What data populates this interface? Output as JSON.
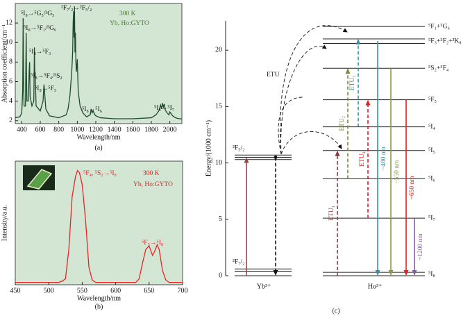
{
  "chart_data": [
    {
      "type": "line",
      "xlabel": "Wavelength/nm",
      "ylabel": "Absorption coefficient/cm⁻¹",
      "caption": "(a)",
      "xlim": [
        330,
        2130
      ],
      "ylim": [
        1.7,
        14
      ],
      "xticks": [
        400,
        600,
        800,
        1000,
        1200,
        1400,
        1600,
        1800,
        2000
      ],
      "yticks": [
        2,
        4,
        6,
        8,
        10,
        12
      ],
      "background": "#d3e6d3",
      "series": [
        {
          "color": "#1f4a2c",
          "x": [
            330,
            380,
            400,
            410,
            415,
            420,
            425,
            440,
            448,
            452,
            456,
            470,
            480,
            485,
            490,
            510,
            530,
            537,
            541,
            545,
            555,
            600,
            630,
            640,
            645,
            650,
            660,
            700,
            800,
            880,
            900,
            920,
            940,
            950,
            955,
            960,
            965,
            970,
            975,
            980,
            985,
            990,
            1000,
            1010,
            1030,
            1060,
            1100,
            1140,
            1150,
            1160,
            1170,
            1190,
            1200,
            1250,
            1400,
            1600,
            1800,
            1850,
            1880,
            1900,
            1910,
            1920,
            1930,
            1940,
            1950,
            1970,
            1990,
            2000,
            2030,
            2060,
            2100,
            2130
          ],
          "values": [
            2.3,
            2.4,
            2.8,
            5,
            12.5,
            6,
            3.5,
            3.5,
            11,
            6,
            4,
            4,
            7,
            8,
            4.5,
            3.5,
            4,
            9.5,
            6.5,
            7,
            3.5,
            3,
            4,
            5.7,
            5.2,
            4.5,
            3.2,
            2.5,
            2.3,
            2.6,
            3.2,
            4.5,
            7,
            9,
            12,
            13.2,
            10.5,
            13.7,
            9,
            11,
            8,
            7,
            8.3,
            5,
            3.5,
            2.8,
            2.4,
            2.6,
            3.2,
            2.8,
            3,
            2.6,
            2.5,
            2.3,
            2.2,
            2.2,
            2.3,
            2.6,
            3,
            3.6,
            3.2,
            3.8,
            3.4,
            3.7,
            3.1,
            2.8,
            2.6,
            2.9,
            2.5,
            2.3,
            2.2,
            2.2
          ]
        }
      ],
      "annotations": [
        "⁵I₈→⁵G₅/³G₅",
        "⁵I₈→⁵F₁/⁵G₆",
        "⁵I₈→⁵F₃",
        "⁵I₈→⁵F₄/⁵S₂",
        "⁵I₈→⁵F₅",
        "²F₇/₂→²F₅/₂",
        "⁵I₈→⁵I₆",
        "⁵I₈→⁵I₇",
        "300 K",
        "Yb, Ho:GYTO"
      ]
    },
    {
      "type": "line",
      "xlabel": "Wavelength/nm",
      "ylabel": "Intensity/a.u.",
      "caption": "(b)",
      "xlim": [
        450,
        700
      ],
      "ylim": [
        0,
        1.05
      ],
      "xticks": [
        450,
        500,
        550,
        600,
        650,
        700
      ],
      "background": "#d3e6d3",
      "series": [
        {
          "color": "#ee2222",
          "x": [
            450,
            480,
            515,
            520,
            525,
            530,
            535,
            540,
            543,
            546,
            550,
            555,
            560,
            565,
            570,
            630,
            635,
            640,
            645,
            650,
            655,
            658,
            662,
            665,
            670,
            675,
            680,
            700
          ],
          "values": [
            0.02,
            0.02,
            0.02,
            0.03,
            0.05,
            0.3,
            0.75,
            0.92,
            0.97,
            0.95,
            0.85,
            0.55,
            0.15,
            0.04,
            0.02,
            0.02,
            0.05,
            0.18,
            0.3,
            0.33,
            0.25,
            0.28,
            0.34,
            0.3,
            0.12,
            0.04,
            0.02,
            0.02
          ]
        }
      ],
      "annotations": [
        "⁵F₄, ⁵S₂→⁵I₈",
        "⁵F₅→⁵I₈",
        "300 K",
        "Yb, Ho:GYTO"
      ]
    },
    {
      "type": "energy-level",
      "ylabel": "Energy/(1000 cm⁻¹)",
      "caption": "(c)",
      "ylim": [
        0,
        22.6
      ],
      "yticks": [
        0,
        5,
        10,
        15,
        20
      ],
      "ions": [
        "Yb³⁺",
        "Ho³⁺"
      ],
      "annotation": "ETU",
      "yb_levels": [
        {
          "label": "²F₅/₂",
          "energies": [
            10.3,
            10.5,
            10.7
          ]
        },
        {
          "label": "²F₇/₂",
          "energies": [
            0,
            0.4,
            0.6
          ]
        }
      ],
      "ho_levels": [
        {
          "label": "⁵F₁+⁵G₆",
          "energies": [
            22.1
          ]
        },
        {
          "label": "⁵F₃+⁵F₂+³K₈",
          "energies": [
            20.6,
            21.0
          ]
        },
        {
          "label": "⁵S₂+⁵F₄",
          "energies": [
            18.4
          ]
        },
        {
          "label": "⁵F₅",
          "energies": [
            15.6
          ]
        },
        {
          "label": "⁵I₄",
          "energies": [
            13.2
          ]
        },
        {
          "label": "⁵I₅",
          "energies": [
            11.1
          ]
        },
        {
          "label": "⁵I₆",
          "energies": [
            8.6
          ]
        },
        {
          "label": "⁵I₇",
          "energies": [
            5.1
          ]
        },
        {
          "label": "⁵I₈",
          "energies": [
            0,
            0.3
          ]
        }
      ],
      "transitions": [
        {
          "from": 0,
          "to": 10.5,
          "color": "#8b4a4a",
          "style": "solid"
        },
        {
          "from": 10.5,
          "to": 0,
          "color": "#111111",
          "style": "dashed"
        },
        {
          "label": "ETU₁",
          "from": 0,
          "to": 11.1,
          "color": "#8b3a3a",
          "style": "dashed"
        },
        {
          "label": "ETU₂",
          "from": 8.6,
          "to": 18.4,
          "color": "#7a8a3a",
          "style": "dashed"
        },
        {
          "label": "ETU₃",
          "from": 13.2,
          "to": 21.0,
          "color": "#3a8fa0",
          "style": "dashed"
        },
        {
          "label": "ETU₄",
          "from": 5.1,
          "to": 15.6,
          "color": "#e02020",
          "style": "dashed"
        },
        {
          "label": "~480 nm",
          "from": 20.8,
          "to": 0,
          "color": "#3a8fa0",
          "style": "solid"
        },
        {
          "label": "~550 nm",
          "from": 18.4,
          "to": 0,
          "color": "#8a9a4a",
          "style": "solid"
        },
        {
          "label": "~650 nm",
          "from": 15.6,
          "to": 0,
          "color": "#e02020",
          "style": "solid"
        },
        {
          "label": "~1200 nm",
          "from": 5.1,
          "to": 0,
          "color": "#8a5aa0",
          "style": "solid"
        }
      ]
    }
  ]
}
